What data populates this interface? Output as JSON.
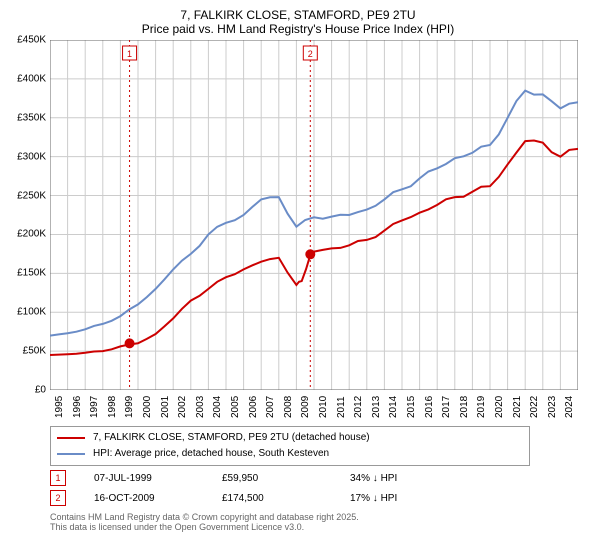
{
  "title": {
    "line1": "7, FALKIRK CLOSE, STAMFORD, PE9 2TU",
    "line2": "Price paid vs. HM Land Registry's House Price Index (HPI)"
  },
  "chart": {
    "type": "line",
    "background_color": "#ffffff",
    "grid_color": "#cccccc",
    "font_size": 10,
    "x_label_rotation": -90,
    "ylim": [
      0,
      450000
    ],
    "ytick_step": 50000,
    "y_ticks": [
      "£0",
      "£50K",
      "£100K",
      "£150K",
      "£200K",
      "£250K",
      "£300K",
      "£350K",
      "£400K",
      "£450K"
    ],
    "xlim": [
      1995,
      2025
    ],
    "x_ticks": [
      "1995",
      "1996",
      "1997",
      "1998",
      "1999",
      "2000",
      "2001",
      "2002",
      "2003",
      "2004",
      "2005",
      "2006",
      "2007",
      "2008",
      "2009",
      "2010",
      "2011",
      "2012",
      "2013",
      "2014",
      "2015",
      "2016",
      "2017",
      "2018",
      "2019",
      "2020",
      "2021",
      "2022",
      "2023",
      "2024"
    ],
    "series": [
      {
        "id": "price_paid",
        "label": "7, FALKIRK CLOSE, STAMFORD, PE9 2TU (detached house)",
        "color": "#cc0000",
        "line_width": 2,
        "x": [
          1995,
          1996,
          1997,
          1998,
          1999,
          2000,
          2001,
          2002,
          2003,
          2004,
          2005,
          2006,
          2007,
          2008,
          2009,
          2009.3,
          2009.8,
          2010,
          2011,
          2012,
          2013,
          2014,
          2015,
          2016,
          2017,
          2018,
          2019,
          2020,
          2021,
          2022,
          2023,
          2024,
          2025
        ],
        "y": [
          45000,
          46000,
          48000,
          50000,
          56000,
          60000,
          72000,
          92000,
          115000,
          130000,
          145000,
          155000,
          165000,
          170000,
          135000,
          140000,
          174500,
          178000,
          182000,
          186000,
          193000,
          205000,
          218000,
          228000,
          238000,
          248000,
          255000,
          262000,
          290000,
          320000,
          318000,
          300000,
          310000
        ]
      },
      {
        "id": "hpi",
        "label": "HPI: Average price, detached house, South Kesteven",
        "color": "#6a8cc7",
        "line_width": 2,
        "x": [
          1995,
          1996,
          1997,
          1998,
          1999,
          2000,
          2001,
          2002,
          2003,
          2004,
          2005,
          2006,
          2007,
          2008,
          2009,
          2010,
          2011,
          2012,
          2013,
          2014,
          2015,
          2016,
          2017,
          2018,
          2019,
          2020,
          2021,
          2022,
          2023,
          2024,
          2025
        ],
        "y": [
          70000,
          73000,
          78000,
          85000,
          95000,
          110000,
          130000,
          155000,
          175000,
          200000,
          215000,
          225000,
          245000,
          248000,
          210000,
          222000,
          223000,
          225000,
          232000,
          245000,
          258000,
          272000,
          285000,
          298000,
          305000,
          315000,
          350000,
          385000,
          380000,
          362000,
          370000
        ]
      }
    ],
    "vlines": [
      {
        "x": 1999.52,
        "color": "#cc0000",
        "dash": "2,3",
        "label": "1"
      },
      {
        "x": 2009.79,
        "color": "#cc0000",
        "dash": "2,3",
        "label": "2"
      }
    ],
    "markers": [
      {
        "x": 1999.52,
        "y": 59950,
        "color": "#cc0000",
        "size": 5
      },
      {
        "x": 2009.79,
        "y": 174500,
        "color": "#cc0000",
        "size": 5
      }
    ]
  },
  "legend": {
    "items": [
      {
        "color": "#cc0000",
        "label": "7, FALKIRK CLOSE, STAMFORD, PE9 2TU (detached house)"
      },
      {
        "color": "#6a8cc7",
        "label": "HPI: Average price, detached house, South Kesteven"
      }
    ]
  },
  "sales": [
    {
      "num": "1",
      "date": "07-JUL-1999",
      "price": "£59,950",
      "hpi": "34% ↓ HPI"
    },
    {
      "num": "2",
      "date": "16-OCT-2009",
      "price": "£174,500",
      "hpi": "17% ↓ HPI"
    }
  ],
  "footer": {
    "line1": "Contains HM Land Registry data © Crown copyright and database right 2025.",
    "line2": "This data is licensed under the Open Government Licence v3.0."
  }
}
